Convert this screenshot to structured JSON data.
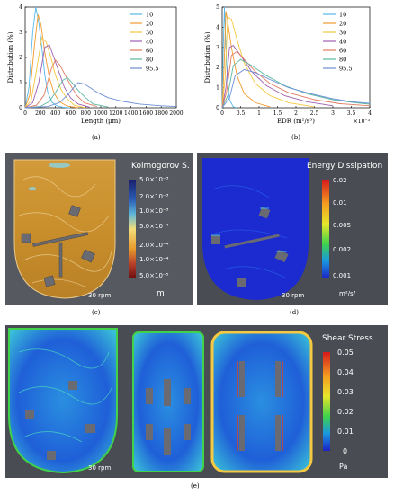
{
  "captions": {
    "a": "(a)",
    "b": "(b)",
    "c": "(c)",
    "d": "(d)",
    "e": "(e)"
  },
  "rpm_label": "30 rpm",
  "chart_data": [
    {
      "type": "line",
      "xlabel": "Length (μm)",
      "ylabel": "Distribution (%)",
      "xlim": [
        0,
        2000
      ],
      "ylim": [
        0,
        4
      ],
      "xticks": [
        "0",
        "200",
        "400",
        "600",
        "800",
        "1000",
        "1200",
        "1400",
        "1600",
        "1800",
        "2000"
      ],
      "yticks": [
        "0",
        "1",
        "2",
        "3",
        "4"
      ],
      "legend_position": "top-right",
      "series": [
        {
          "name": "10",
          "color": "#58b8e8",
          "x": [
            0,
            50,
            100,
            140,
            180,
            220,
            260,
            300,
            360,
            420,
            500,
            600
          ],
          "y": [
            0,
            0.8,
            3.0,
            4.0,
            3.4,
            2.4,
            1.3,
            0.6,
            0.2,
            0.08,
            0.02,
            0
          ]
        },
        {
          "name": "20",
          "color": "#f39a2c",
          "x": [
            0,
            60,
            120,
            170,
            210,
            260,
            320,
            380,
            450,
            550,
            700
          ],
          "y": [
            0,
            0.5,
            2.4,
            3.7,
            3.3,
            2.2,
            1.2,
            0.6,
            0.25,
            0.07,
            0
          ]
        },
        {
          "name": "30",
          "color": "#f4c840",
          "x": [
            0,
            80,
            150,
            220,
            280,
            340,
            400,
            480,
            560,
            650,
            800
          ],
          "y": [
            0,
            0.3,
            1.5,
            2.8,
            2.6,
            2.0,
            1.3,
            0.7,
            0.35,
            0.1,
            0
          ]
        },
        {
          "name": "40",
          "color": "#a05fb3",
          "x": [
            0,
            100,
            180,
            260,
            320,
            380,
            450,
            520,
            600,
            700,
            850
          ],
          "y": [
            0,
            0.2,
            1.0,
            2.4,
            2.5,
            2.0,
            1.4,
            0.8,
            0.4,
            0.15,
            0.03
          ]
        },
        {
          "name": "60",
          "color": "#e07a5f",
          "x": [
            0,
            150,
            250,
            340,
            400,
            460,
            530,
            600,
            680,
            780,
            950
          ],
          "y": [
            0,
            0.1,
            0.5,
            1.5,
            1.9,
            1.7,
            1.3,
            0.9,
            0.5,
            0.2,
            0.05
          ]
        },
        {
          "name": "80",
          "color": "#5ab8a0",
          "x": [
            0,
            200,
            320,
            420,
            500,
            560,
            620,
            700,
            800,
            900,
            1100
          ],
          "y": [
            0,
            0.05,
            0.25,
            0.7,
            1.1,
            1.2,
            1.0,
            0.7,
            0.4,
            0.15,
            0.03
          ]
        },
        {
          "name": "95.5",
          "color": "#6a8fd6",
          "x": [
            0,
            300,
            450,
            560,
            640,
            700,
            780,
            860,
            960,
            1100,
            1300,
            1500,
            1800,
            2000
          ],
          "y": [
            0,
            0.05,
            0.2,
            0.5,
            0.8,
            1.0,
            0.95,
            0.8,
            0.6,
            0.4,
            0.25,
            0.15,
            0.08,
            0.05
          ]
        }
      ]
    },
    {
      "type": "line",
      "xlabel": "EDR (m²/s³)",
      "ylabel": "Distribution (%)",
      "xlim": [
        0,
        4
      ],
      "ylim": [
        0,
        5
      ],
      "x_scale_label": "×10⁻³",
      "xticks": [
        "0",
        "0.5",
        "1",
        "1.5",
        "2",
        "2.5",
        "3",
        "3.5",
        "4"
      ],
      "yticks": [
        "0",
        "1",
        "2",
        "3",
        "4",
        "5"
      ],
      "legend_position": "top-right",
      "series": [
        {
          "name": "10",
          "color": "#58b8e8",
          "x": [
            0,
            0.03,
            0.06,
            0.1,
            0.15,
            0.2,
            0.3,
            0.4
          ],
          "y": [
            0,
            3.0,
            5.0,
            3.0,
            1.2,
            0.4,
            0.05,
            0
          ]
        },
        {
          "name": "20",
          "color": "#f39a2c",
          "x": [
            0,
            0.05,
            0.1,
            0.15,
            0.25,
            0.4,
            0.6,
            0.9,
            1.3
          ],
          "y": [
            0,
            2.0,
            4.8,
            4.3,
            3.0,
            1.6,
            0.7,
            0.25,
            0.05
          ]
        },
        {
          "name": "30",
          "color": "#f4c840",
          "x": [
            0,
            0.08,
            0.15,
            0.25,
            0.4,
            0.6,
            0.9,
            1.3,
            1.8,
            2.5
          ],
          "y": [
            0,
            1.5,
            4.5,
            4.4,
            3.4,
            2.2,
            1.2,
            0.6,
            0.25,
            0.05
          ]
        },
        {
          "name": "40",
          "color": "#a05fb3",
          "x": [
            0,
            0.1,
            0.2,
            0.3,
            0.5,
            0.8,
            1.2,
            1.7,
            2.3,
            3.0
          ],
          "y": [
            0,
            1.0,
            3.0,
            3.1,
            2.6,
            1.8,
            1.1,
            0.6,
            0.3,
            0.1
          ]
        },
        {
          "name": "60",
          "color": "#e07a5f",
          "x": [
            0,
            0.12,
            0.25,
            0.4,
            0.6,
            0.9,
            1.3,
            1.8,
            2.5,
            3.2,
            4.0
          ],
          "y": [
            0,
            0.8,
            2.6,
            2.8,
            2.4,
            1.8,
            1.2,
            0.75,
            0.4,
            0.2,
            0.1
          ]
        },
        {
          "name": "80",
          "color": "#5ab8a0",
          "x": [
            0,
            0.15,
            0.3,
            0.5,
            0.8,
            1.2,
            1.7,
            2.3,
            3.0,
            3.6,
            4.0
          ],
          "y": [
            0,
            0.6,
            2.1,
            2.4,
            2.1,
            1.6,
            1.1,
            0.7,
            0.4,
            0.25,
            0.18
          ]
        },
        {
          "name": "95.5",
          "color": "#6a8fd6",
          "x": [
            0,
            0.2,
            0.35,
            0.6,
            0.9,
            1.3,
            1.8,
            2.4,
            3.0,
            3.5,
            4.0
          ],
          "y": [
            0,
            0.5,
            1.6,
            1.9,
            1.75,
            1.4,
            1.0,
            0.7,
            0.45,
            0.3,
            0.22
          ]
        }
      ]
    }
  ],
  "panels": {
    "c": {
      "colorbar_title": "Kolmogorov S.",
      "colorbar_labels": [
        "5.0×10⁻³",
        "2.0×10⁻³",
        "1.0×10⁻³",
        "5.0×10⁻⁴",
        "2.0×10⁻⁴",
        "1.0×10⁻⁴",
        "5.0×10⁻⁵"
      ],
      "unit": "m",
      "colors": [
        "#1a1f6b",
        "#2a5cb4",
        "#5fb6d9",
        "#f3dd7a",
        "#e79c2c",
        "#b9412a",
        "#6b0e10"
      ]
    },
    "d": {
      "colorbar_title": "Energy Dissipation",
      "colorbar_labels": [
        "0.02",
        "0.01",
        "0.005",
        "0.002",
        "0.001"
      ],
      "unit": "m²/s³",
      "colors": [
        "#d7191c",
        "#f4a020",
        "#e6e62a",
        "#3fd24a",
        "#1a9adf",
        "#1a22c8"
      ]
    },
    "e": {
      "colorbar_title": "Shear Stress",
      "colorbar_labels": [
        "0.05",
        "0.04",
        "0.03",
        "0.02",
        "0.01",
        "0"
      ],
      "unit": "Pa",
      "colors": [
        "#d7191c",
        "#f4a020",
        "#e6e62a",
        "#3fd24a",
        "#1a9adf",
        "#1a22c8"
      ]
    }
  }
}
